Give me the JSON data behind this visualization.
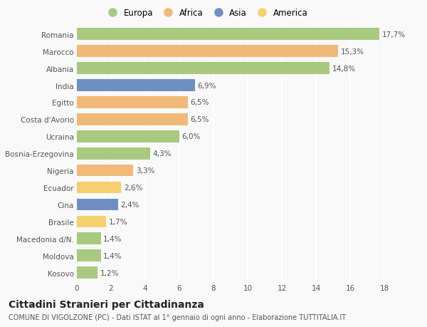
{
  "countries": [
    "Romania",
    "Marocco",
    "Albania",
    "India",
    "Egitto",
    "Costa d'Avorio",
    "Ucraina",
    "Bosnia-Erzegovina",
    "Nigeria",
    "Ecuador",
    "Cina",
    "Brasile",
    "Macedonia d/N.",
    "Moldova",
    "Kosovo"
  ],
  "values": [
    17.7,
    15.3,
    14.8,
    6.9,
    6.5,
    6.5,
    6.0,
    4.3,
    3.3,
    2.6,
    2.4,
    1.7,
    1.4,
    1.4,
    1.2
  ],
  "labels": [
    "17,7%",
    "15,3%",
    "14,8%",
    "6,9%",
    "6,5%",
    "6,5%",
    "6,0%",
    "4,3%",
    "3,3%",
    "2,6%",
    "2,4%",
    "1,7%",
    "1,4%",
    "1,4%",
    "1,2%"
  ],
  "continents": [
    "Europa",
    "Africa",
    "Europa",
    "Asia",
    "Africa",
    "Africa",
    "Europa",
    "Europa",
    "Africa",
    "America",
    "Asia",
    "America",
    "Europa",
    "Europa",
    "Europa"
  ],
  "continent_colors": {
    "Europa": "#a8c97f",
    "Africa": "#f0b97a",
    "Asia": "#6e8fc4",
    "America": "#f5d06e"
  },
  "legend_order": [
    "Europa",
    "Africa",
    "Asia",
    "America"
  ],
  "title": "Cittadini Stranieri per Cittadinanza",
  "subtitle": "COMUNE DI VIGOLZONE (PC) - Dati ISTAT al 1° gennaio di ogni anno - Elaborazione TUTTITALIA.IT",
  "xlim": [
    0,
    18
  ],
  "xticks": [
    0,
    2,
    4,
    6,
    8,
    10,
    12,
    14,
    16,
    18
  ],
  "background_color": "#f9f9f9",
  "grid_color": "#ffffff",
  "bar_height": 0.7,
  "label_fontsize": 7.5,
  "title_fontsize": 10,
  "subtitle_fontsize": 7,
  "tick_fontsize": 7.5,
  "legend_fontsize": 8.5
}
